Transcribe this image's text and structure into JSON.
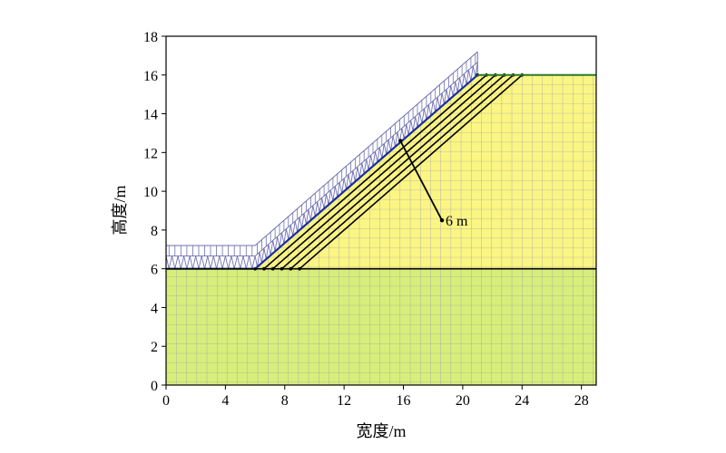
{
  "figure": {
    "xlabel": "宽度/m",
    "ylabel": "高度/m",
    "x_ticks": [
      "0",
      "4",
      "8",
      "12",
      "16",
      "20",
      "24",
      "28"
    ],
    "y_ticks": [
      "0",
      "2",
      "4",
      "6",
      "8",
      "10",
      "12",
      "14",
      "16",
      "18"
    ],
    "annotation": "6 m"
  },
  "chart_data": {
    "type": "diagram",
    "xlim": [
      0,
      29
    ],
    "ylim": [
      0,
      18
    ],
    "x_tick_values": [
      0,
      4,
      8,
      12,
      16,
      20,
      24,
      28
    ],
    "y_tick_values": [
      0,
      2,
      4,
      6,
      8,
      10,
      12,
      14,
      16,
      18
    ],
    "foundation": {
      "x": [
        0,
        29
      ],
      "y": [
        0,
        6
      ]
    },
    "embankment": {
      "outline": [
        [
          0,
          6
        ],
        [
          6,
          6
        ],
        [
          21,
          16
        ],
        [
          29,
          16
        ],
        [
          29,
          6
        ]
      ]
    },
    "reinforcement_layers": {
      "count": 6,
      "x_start_bottom": 6,
      "x_end_bottom": 9,
      "x_start_top": 21,
      "x_end_top": 24
    },
    "load": {
      "surface": [
        [
          0,
          6
        ],
        [
          6,
          6
        ],
        [
          21,
          16
        ]
      ],
      "height": 1.2
    },
    "annotation": {
      "label": "6 m",
      "from": [
        15.8,
        12.6
      ],
      "to": [
        18.6,
        8.5
      ]
    },
    "colors": {
      "foundation": "#d8ee7a",
      "embankment": "#fbf583",
      "mesh": "#8a8ac0",
      "surface_line": "#1a2fa0",
      "load_arrow": "#6f6fb0",
      "reinforcement": "#000000",
      "top_edge": "#2a7a2a"
    }
  }
}
